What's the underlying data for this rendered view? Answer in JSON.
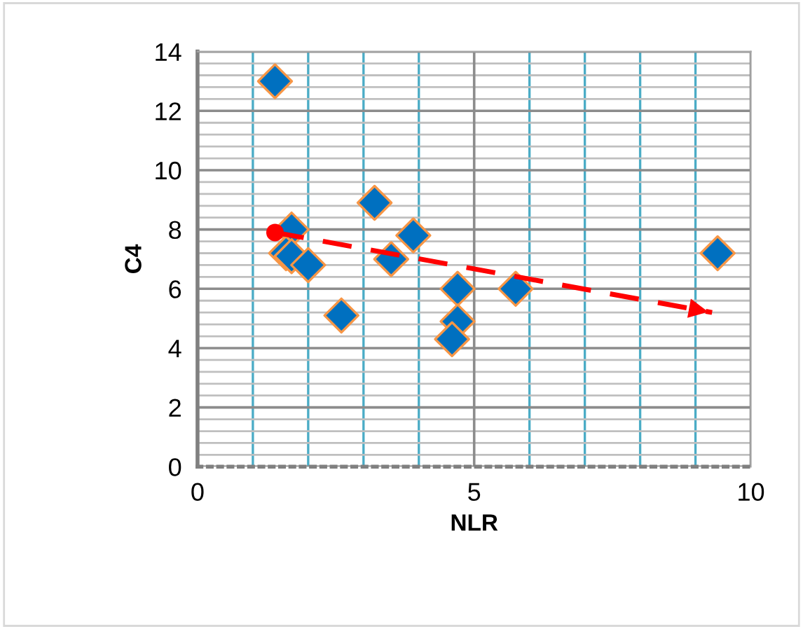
{
  "chart_data": {
    "type": "scatter",
    "xlabel": "NLR",
    "ylabel": "C4",
    "xlim": [
      0,
      10
    ],
    "ylim": [
      0,
      14
    ],
    "xticks": [
      0,
      {
        "value": 1,
        "label": null
      },
      {
        "value": 2,
        "label": null
      },
      {
        "value": 3,
        "label": null
      },
      {
        "value": 4,
        "label": null
      },
      5,
      {
        "value": 6,
        "label": null
      },
      {
        "value": 7,
        "label": null
      },
      {
        "value": 8,
        "label": null
      },
      {
        "value": 9,
        "label": null
      },
      10
    ],
    "yticks": [
      0,
      2,
      4,
      6,
      8,
      10,
      12,
      14
    ],
    "grid": true,
    "marker": "diamond",
    "legend": false,
    "series": [
      {
        "color": "#0070c0",
        "x": [
          1.4,
          1.7,
          1.6,
          1.7,
          2.0,
          2.6,
          3.2,
          3.5,
          3.9,
          4.7,
          4.7,
          4.6,
          5.75,
          9.4
        ],
        "values": [
          13.0,
          8.0,
          7.2,
          7.1,
          6.8,
          5.1,
          8.9,
          7.0,
          7.8,
          6.0,
          4.9,
          4.3,
          6.0,
          7.2
        ]
      },
      {
        "type": "line",
        "color": "#ff0000",
        "line_style": "dashed",
        "marker": "circle",
        "x": [
          1.4,
          9.3
        ],
        "values": [
          7.9,
          5.2
        ]
      }
    ]
  }
}
